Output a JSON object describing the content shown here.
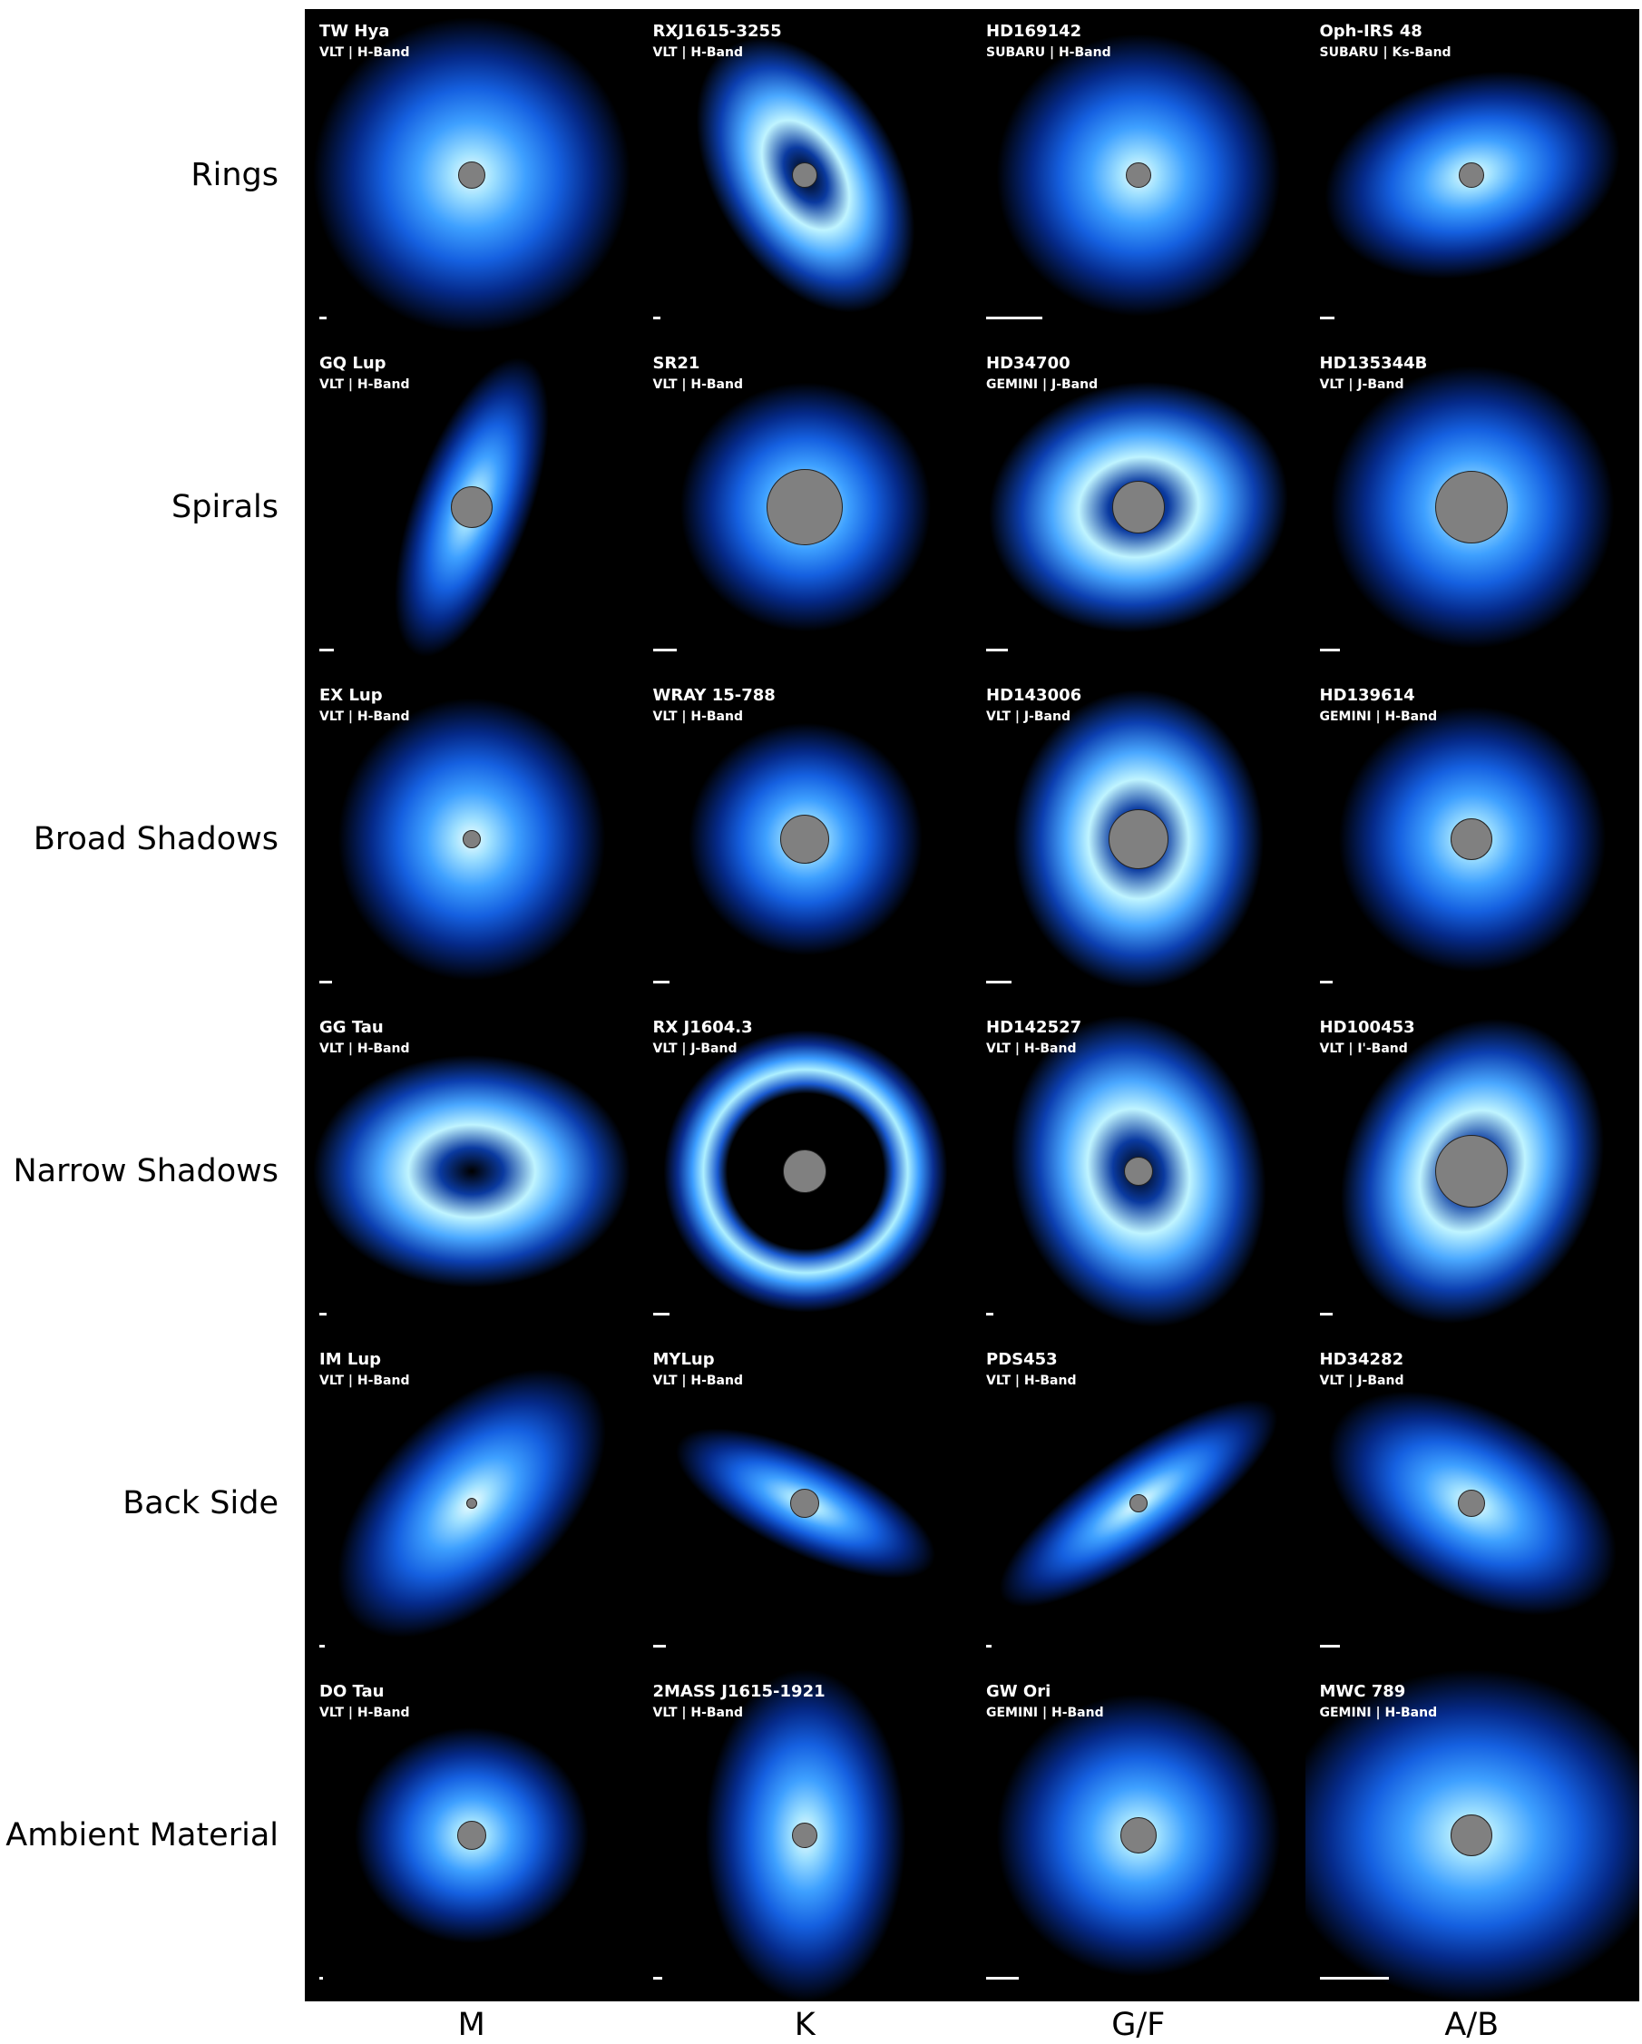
{
  "row_labels": [
    "Rings",
    "Spirals",
    "Broad Shadows",
    "Narrow Shadows",
    "Back Side",
    "Ambient Material"
  ],
  "column_labels": [
    "M",
    "K",
    "G/F",
    "A/B"
  ],
  "cells": [
    [
      {
        "name": "TW Hya",
        "subtitle": "VLT | H-Band"
      },
      {
        "name": "RXJ1615-3255",
        "subtitle": "VLT | H-Band"
      },
      {
        "name": "HD169142",
        "subtitle": "SUBARU | H-Band"
      },
      {
        "name": "Oph-IRS 48",
        "subtitle": "SUBARU | Ks-Band"
      }
    ],
    [
      {
        "name": "GQ Lup",
        "subtitle": "VLT | H-Band"
      },
      {
        "name": "SR21",
        "subtitle": "VLT | H-Band"
      },
      {
        "name": "HD34700",
        "subtitle": "GEMINI | J-Band"
      },
      {
        "name": "HD135344B",
        "subtitle": "VLT | J-Band"
      }
    ],
    [
      {
        "name": "EX Lup",
        "subtitle": "VLT | H-Band"
      },
      {
        "name": "WRAY 15-788",
        "subtitle": "VLT | H-Band"
      },
      {
        "name": "HD143006",
        "subtitle": "VLT | J-Band"
      },
      {
        "name": "HD139614",
        "subtitle": "GEMINI | H-Band"
      }
    ],
    [
      {
        "name": "GG Tau",
        "subtitle": "VLT | H-Band"
      },
      {
        "name": "RX J1604.3",
        "subtitle": "VLT | J-Band"
      },
      {
        "name": "HD142527",
        "subtitle": "VLT | H-Band"
      },
      {
        "name": "HD100453",
        "subtitle": "VLT | I'-Band"
      }
    ],
    [
      {
        "name": "IM Lup",
        "subtitle": "VLT | H-Band"
      },
      {
        "name": "MYLup",
        "subtitle": "VLT | H-Band"
      },
      {
        "name": "PDS453",
        "subtitle": "VLT | H-Band"
      },
      {
        "name": "HD34282",
        "subtitle": "VLT | J-Band"
      }
    ],
    [
      {
        "name": "DO Tau",
        "subtitle": "VLT | H-Band"
      },
      {
        "name": "2MASS J1615-1921",
        "subtitle": "VLT | H-Band"
      },
      {
        "name": "GW Ori",
        "subtitle": "GEMINI | H-Band"
      },
      {
        "name": "MWC 789",
        "subtitle": "GEMINI | H-Band"
      }
    ]
  ]
}
